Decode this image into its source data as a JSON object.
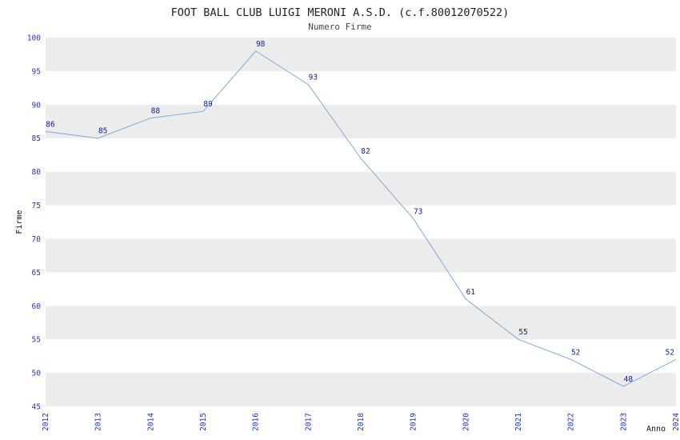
{
  "chart_data": {
    "type": "line",
    "title": "FOOT BALL CLUB LUIGI MERONI A.S.D. (c.f.80012070522)",
    "subtitle": "Numero Firme",
    "xlabel": "Anno",
    "ylabel": "Firme",
    "x": [
      "2012",
      "2013",
      "2014",
      "2015",
      "2016",
      "2017",
      "2018",
      "2019",
      "2020",
      "2021",
      "2022",
      "2023",
      "2024"
    ],
    "values": [
      86,
      85,
      88,
      89,
      98,
      93,
      82,
      73,
      61,
      55,
      52,
      48,
      52
    ],
    "ylim": [
      45,
      100
    ],
    "ytick_step": 5,
    "grid": "alternating-bands",
    "legend": "none",
    "colors": {
      "line": "#7fa8d9",
      "band": "#ececec",
      "band_alt": "#ffffff",
      "value_label": "#112299",
      "tick_label": "#2233cc",
      "title": "#222222",
      "subtitle": "#444455",
      "axis_label": "#111111",
      "background": "#ffffff"
    }
  }
}
